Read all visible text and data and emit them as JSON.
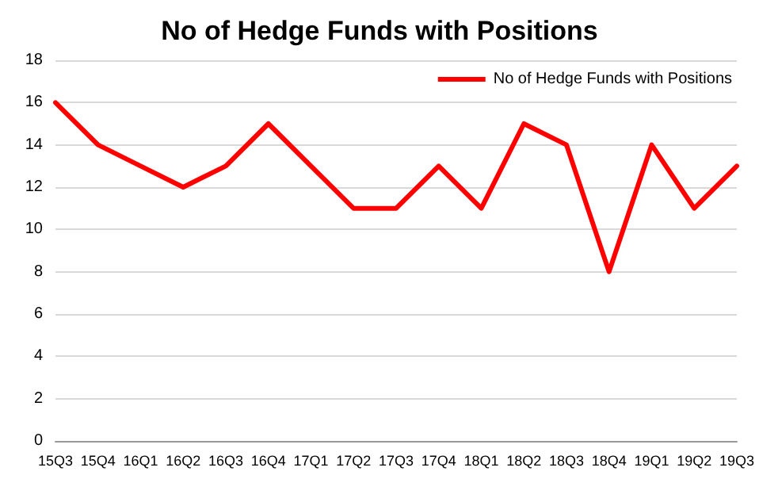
{
  "chart_data": {
    "type": "line",
    "title": "No of Hedge Funds with Positions",
    "categories": [
      "15Q3",
      "15Q4",
      "16Q1",
      "16Q2",
      "16Q3",
      "16Q4",
      "17Q1",
      "17Q2",
      "17Q3",
      "17Q4",
      "18Q1",
      "18Q2",
      "18Q3",
      "18Q4",
      "19Q1",
      "19Q2",
      "19Q3"
    ],
    "series": [
      {
        "name": "No of Hedge Funds with Positions",
        "color": "#ff0000",
        "values": [
          16,
          14,
          13,
          12,
          13,
          15,
          13,
          11,
          11,
          13,
          11,
          15,
          14,
          8,
          14,
          11,
          13
        ]
      }
    ],
    "ylim": [
      0,
      18
    ],
    "yticks": [
      0,
      2,
      4,
      6,
      8,
      10,
      12,
      14,
      16,
      18
    ],
    "grid": "y",
    "legend": "top right",
    "marker": "none",
    "line_style": "solid"
  }
}
